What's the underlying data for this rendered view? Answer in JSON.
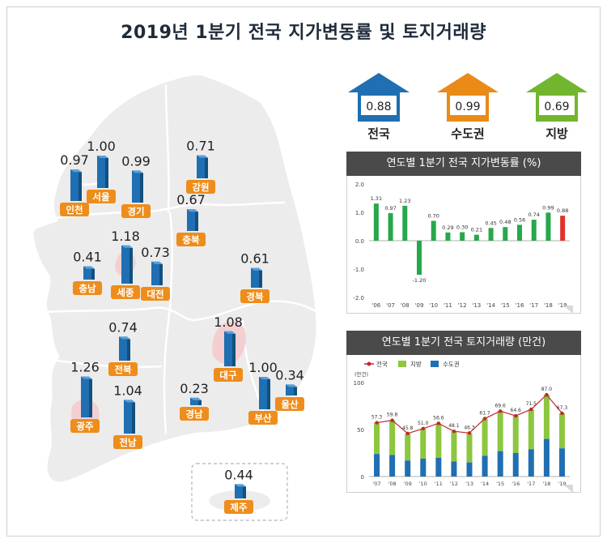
{
  "title": "2019년 1분기 전국 지가변동률 및 토지거래량",
  "summary": [
    {
      "label": "전국",
      "value": "0.88",
      "color": "#1f6fb2"
    },
    {
      "label": "수도권",
      "value": "0.99",
      "color": "#e98b16"
    },
    {
      "label": "지방",
      "value": "0.69",
      "color": "#72b52f"
    }
  ],
  "regions": [
    {
      "name": "인천",
      "value": "0.97"
    },
    {
      "name": "서울",
      "value": "1.00"
    },
    {
      "name": "경기",
      "value": "0.99"
    },
    {
      "name": "강원",
      "value": "0.71"
    },
    {
      "name": "충북",
      "value": "0.67"
    },
    {
      "name": "세종",
      "value": "1.18"
    },
    {
      "name": "대전",
      "value": "0.73"
    },
    {
      "name": "충남",
      "value": "0.41"
    },
    {
      "name": "경북",
      "value": "0.61"
    },
    {
      "name": "전북",
      "value": "0.74"
    },
    {
      "name": "대구",
      "value": "1.08"
    },
    {
      "name": "울산",
      "value": "0.34"
    },
    {
      "name": "광주",
      "value": "1.26"
    },
    {
      "name": "전남",
      "value": "1.04"
    },
    {
      "name": "경남",
      "value": "0.23"
    },
    {
      "name": "부산",
      "value": "1.00"
    },
    {
      "name": "제주",
      "value": "0.44"
    }
  ],
  "chart_data": [
    {
      "type": "bar",
      "title": "연도별 1분기 전국 지가변동률 (%)",
      "categories": [
        "'06",
        "'07",
        "'08",
        "'09",
        "'10",
        "'11",
        "'12",
        "'13",
        "'14",
        "'15",
        "'16",
        "'17",
        "'18",
        "'19"
      ],
      "values": [
        1.31,
        0.97,
        1.23,
        -1.2,
        0.7,
        0.29,
        0.3,
        0.21,
        0.45,
        0.48,
        0.56,
        0.74,
        0.99,
        0.88
      ],
      "value_labels": [
        "1.31",
        "0.97",
        "1.23",
        "-1.20",
        "0.70",
        "0.29",
        "0.30",
        "0.21",
        "0.45",
        "0.48",
        "0.56",
        "0.74",
        "0.99",
        "0.88"
      ],
      "yticks": [
        "2.0",
        "1.0",
        "0.0",
        "-1.0",
        "-2.0"
      ],
      "ylim": [
        -2.0,
        2.0
      ],
      "bar_color": "#27a84a",
      "highlight_color": "#e2332a"
    },
    {
      "type": "bar",
      "title": "연도별 1분기 전국  토지거래량 (만건)",
      "unit": "(만건)",
      "legend": [
        "전국",
        "지방",
        "수도권"
      ],
      "legend_colors": [
        "#c0272d",
        "#8dc63f",
        "#1f6fb2"
      ],
      "categories": [
        "'07",
        "'08",
        "'09",
        "'10",
        "'11",
        "'12",
        "'13",
        "'14",
        "'15",
        "'16",
        "'17",
        "'18",
        "'19"
      ],
      "series": [
        {
          "name": "전국",
          "type": "line",
          "values": [
            57.3,
            59.8,
            45.8,
            51.0,
            56.6,
            48.1,
            46.3,
            61.7,
            69.6,
            64.6,
            71.5,
            87.0,
            67.3
          ]
        },
        {
          "name": "수도권",
          "type": "bar",
          "values": [
            24,
            23,
            17,
            19,
            20,
            16,
            15,
            22,
            27,
            25,
            29,
            40,
            30
          ]
        }
      ],
      "value_labels": [
        "57.3",
        "59.8",
        "45.8",
        "51.0",
        "56.6",
        "48.1",
        "46.3",
        "61.7",
        "69.6",
        "64.6",
        "71.5",
        "87.0",
        "67.3"
      ],
      "yticks": [
        "100",
        "50",
        "0"
      ],
      "ylim": [
        0,
        100
      ]
    }
  ]
}
